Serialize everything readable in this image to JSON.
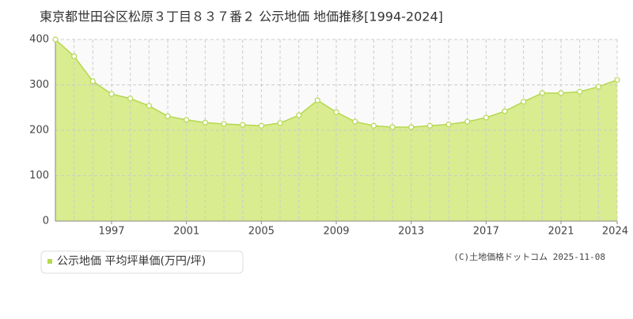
{
  "chart_data": {
    "type": "area",
    "title": "東京都世田谷区松原３丁目８３７番２ 公示地価 地価推移[1994-2024]",
    "x": [
      1994,
      1995,
      1996,
      1997,
      1998,
      1999,
      2000,
      2001,
      2002,
      2003,
      2004,
      2005,
      2006,
      2007,
      2008,
      2009,
      2010,
      2011,
      2012,
      2013,
      2014,
      2015,
      2016,
      2017,
      2018,
      2019,
      2020,
      2021,
      2022,
      2023,
      2024
    ],
    "series": [
      {
        "name": "公示地価 平均坪単価(万円/坪)",
        "color": "#b5d850",
        "values": [
          400,
          363,
          308,
          280,
          270,
          254,
          231,
          223,
          217,
          214,
          212,
          210,
          216,
          233,
          266,
          240,
          219,
          210,
          207,
          207,
          210,
          213,
          219,
          228,
          242,
          263,
          282,
          282,
          285,
          296,
          311
        ]
      }
    ],
    "xlim": [
      1994,
      2024
    ],
    "xticks": [
      1997,
      2001,
      2005,
      2009,
      2013,
      2017,
      2021,
      2024
    ],
    "ylim": [
      0,
      400
    ],
    "yticks": [
      0,
      100,
      200,
      300,
      400
    ],
    "grid": true,
    "credit": "(C)土地価格ドットコム 2025-11-08"
  }
}
